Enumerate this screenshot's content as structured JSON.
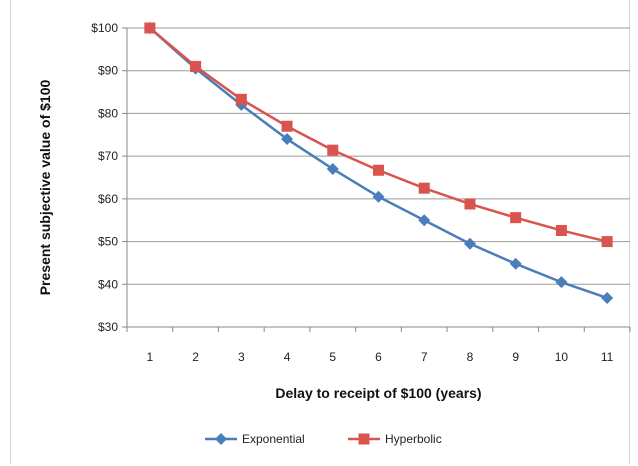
{
  "chart_data": {
    "type": "line",
    "title": "",
    "xlabel": "Delay to receipt of $100 (years)",
    "ylabel": "Present subjective value of $100",
    "x": [
      1,
      2,
      3,
      4,
      5,
      6,
      7,
      8,
      9,
      10,
      11
    ],
    "ylim": [
      30,
      100
    ],
    "yticks": [
      30,
      40,
      50,
      60,
      70,
      80,
      90,
      100
    ],
    "ytick_labels": [
      "$30",
      "$40",
      "$50",
      "$60",
      "$70",
      "$80",
      "$90",
      "$100"
    ],
    "grid": true,
    "legend_position": "bottom",
    "series": [
      {
        "name": "Exponential",
        "color": "#4a7ebb",
        "marker": "diamond",
        "values": [
          100,
          90.5,
          82,
          74,
          67,
          60.5,
          55,
          49.5,
          44.8,
          40.5,
          36.8
        ]
      },
      {
        "name": "Hyperbolic",
        "color": "#d9534f",
        "marker": "square",
        "values": [
          100,
          91,
          83.3,
          77,
          71.4,
          66.7,
          62.5,
          58.8,
          55.6,
          52.6,
          50
        ]
      }
    ]
  }
}
